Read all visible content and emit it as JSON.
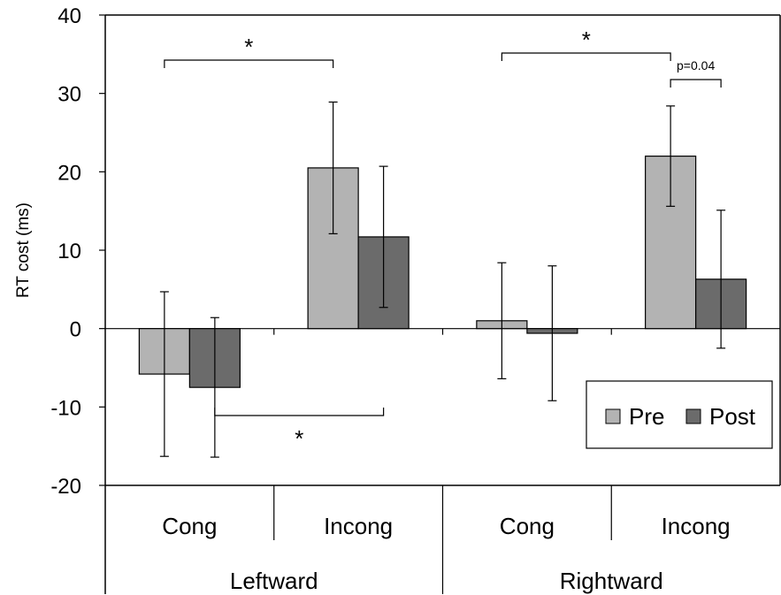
{
  "chart_data": {
    "type": "bar",
    "ylabel": "RT cost (ms)",
    "ylim": [
      -20,
      40
    ],
    "yticks": [
      -20,
      -10,
      0,
      10,
      20,
      30,
      40
    ],
    "groups": [
      "Leftward",
      "Rightward"
    ],
    "categories": [
      "Cong",
      "Incong",
      "Cong",
      "Incong"
    ],
    "series": [
      {
        "name": "Pre",
        "color": "#b3b3b3",
        "values": [
          -5.8,
          20.5,
          1.0,
          22.0
        ],
        "error": [
          10.5,
          8.4,
          7.4,
          6.4
        ]
      },
      {
        "name": "Post",
        "color": "#6b6b6b",
        "values": [
          -7.5,
          11.7,
          -0.6,
          6.3
        ],
        "error": [
          8.9,
          9.0,
          8.6,
          8.8
        ]
      }
    ],
    "legend": {
      "position": "bottom-right",
      "entries": [
        "Pre",
        "Post"
      ]
    },
    "annotations": [
      {
        "label": "*",
        "from": "Leftward Cong Pre",
        "to": "Leftward Incong Pre"
      },
      {
        "label": "*",
        "from": "Leftward Cong Post",
        "to": "Leftward Incong Post"
      },
      {
        "label": "*",
        "from": "Rightward Cong Pre",
        "to": "Rightward Incong Pre"
      },
      {
        "label": "p=0.04",
        "from": "Rightward Incong Pre",
        "to": "Rightward Incong Post"
      }
    ],
    "grid": false
  }
}
